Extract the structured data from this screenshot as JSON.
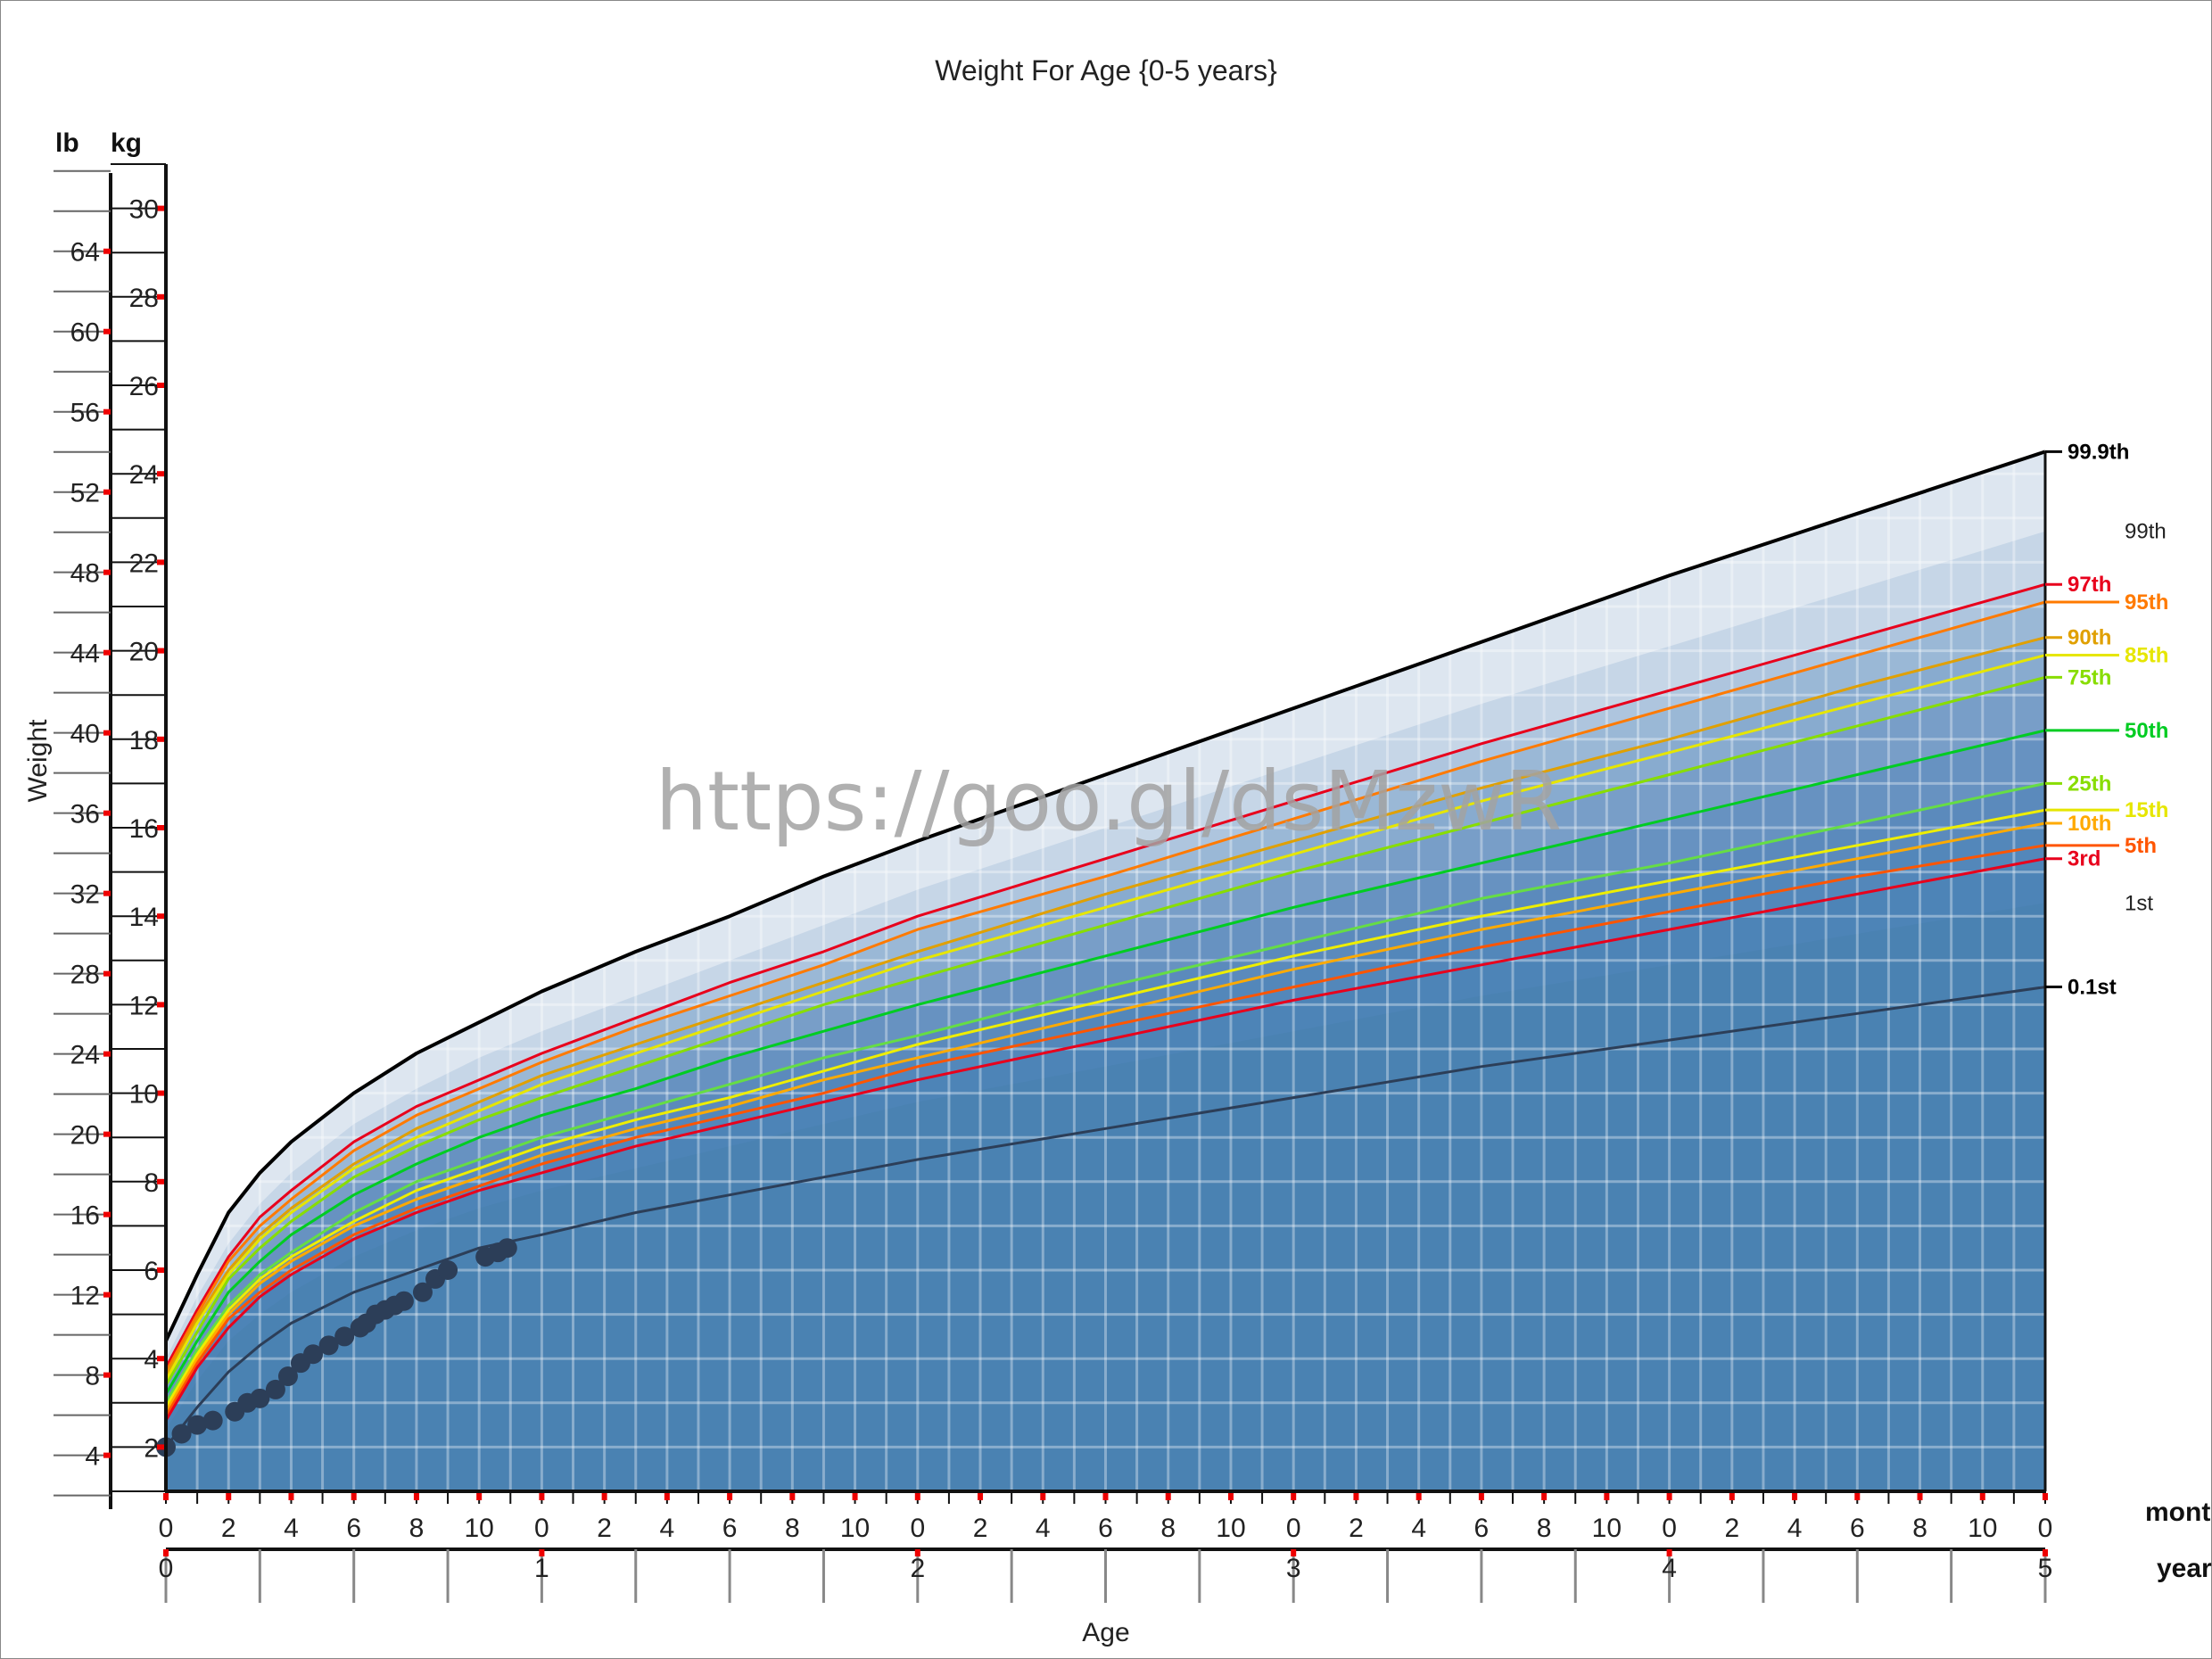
{
  "chart_data": {
    "type": "line",
    "title": "Weight For Age {0-5 years}",
    "xlabel": "Age",
    "ylabel": "Weight",
    "y_units": [
      "lb",
      "kg"
    ],
    "x_units": [
      "month",
      "year"
    ],
    "xlim_months": [
      0,
      60
    ],
    "ylim_kg": [
      1.0,
      31.0
    ],
    "kg_ticks": [
      2,
      4,
      6,
      8,
      10,
      12,
      14,
      16,
      18,
      20,
      22,
      24,
      26,
      28,
      30
    ],
    "lb_ticks": [
      4,
      8,
      12,
      16,
      20,
      24,
      28,
      32,
      36,
      40,
      44,
      48,
      52,
      56,
      60,
      64
    ],
    "month_tick_labels": [
      "0",
      "2",
      "4",
      "6",
      "8",
      "10",
      "0",
      "2",
      "4",
      "6",
      "8",
      "10",
      "0",
      "2",
      "4",
      "6",
      "8",
      "10",
      "0",
      "2",
      "4",
      "6",
      "8",
      "10",
      "0",
      "2",
      "4",
      "6",
      "8",
      "10",
      "0"
    ],
    "year_tick_labels": [
      "0",
      "1",
      "2",
      "3",
      "4",
      "5"
    ],
    "age_months": [
      0,
      1,
      2,
      3,
      4,
      6,
      8,
      10,
      12,
      15,
      18,
      21,
      24,
      30,
      36,
      42,
      48,
      54,
      60
    ],
    "series": [
      {
        "name": "99.9th",
        "color": "#000000",
        "values": [
          4.4,
          5.9,
          7.3,
          8.2,
          8.9,
          10.0,
          10.9,
          11.6,
          12.3,
          13.2,
          14.0,
          14.9,
          15.7,
          17.2,
          18.7,
          20.2,
          21.7,
          23.1,
          24.5
        ]
      },
      {
        "name": "99th",
        "color": "#dce6f0",
        "band_only": true,
        "values": [
          4.0,
          5.4,
          6.6,
          7.5,
          8.2,
          9.3,
          10.1,
          10.8,
          11.4,
          12.2,
          13.0,
          13.8,
          14.6,
          16.0,
          17.4,
          18.8,
          20.1,
          21.4,
          22.7
        ]
      },
      {
        "name": "97th",
        "color": "#e8001c",
        "values": [
          3.8,
          5.1,
          6.3,
          7.2,
          7.8,
          8.9,
          9.7,
          10.3,
          10.9,
          11.7,
          12.5,
          13.2,
          14.0,
          15.3,
          16.6,
          17.9,
          19.1,
          20.3,
          21.5
        ]
      },
      {
        "name": "95th",
        "color": "#ff7a00",
        "values": [
          3.7,
          5.0,
          6.2,
          7.0,
          7.6,
          8.7,
          9.5,
          10.1,
          10.7,
          11.5,
          12.2,
          12.9,
          13.7,
          14.9,
          16.2,
          17.5,
          18.7,
          19.9,
          21.1
        ]
      },
      {
        "name": "90th",
        "color": "#e0a000",
        "values": [
          3.6,
          4.9,
          6.0,
          6.8,
          7.4,
          8.4,
          9.2,
          9.8,
          10.4,
          11.1,
          11.8,
          12.5,
          13.2,
          14.5,
          15.7,
          16.9,
          18.0,
          19.2,
          20.3
        ]
      },
      {
        "name": "85th",
        "color": "#e6e600",
        "values": [
          3.5,
          4.8,
          5.9,
          6.7,
          7.3,
          8.3,
          9.0,
          9.6,
          10.2,
          10.9,
          11.6,
          12.3,
          13.0,
          14.2,
          15.4,
          16.6,
          17.7,
          18.8,
          19.9
        ]
      },
      {
        "name": "75th",
        "color": "#88dd00",
        "values": [
          3.4,
          4.6,
          5.8,
          6.5,
          7.1,
          8.1,
          8.8,
          9.4,
          9.9,
          10.6,
          11.3,
          12.0,
          12.6,
          13.8,
          15.0,
          16.1,
          17.2,
          18.3,
          19.4
        ]
      },
      {
        "name": "50th",
        "color": "#00cc22",
        "values": [
          3.2,
          4.4,
          5.5,
          6.2,
          6.8,
          7.7,
          8.4,
          9.0,
          9.5,
          10.1,
          10.8,
          11.4,
          12.0,
          13.1,
          14.2,
          15.2,
          16.2,
          17.2,
          18.2
        ]
      },
      {
        "name": "25th",
        "color": "#66dd44",
        "values": [
          3.0,
          4.2,
          5.2,
          5.9,
          6.4,
          7.3,
          8.0,
          8.5,
          9.0,
          9.6,
          10.2,
          10.8,
          11.3,
          12.4,
          13.4,
          14.4,
          15.2,
          16.1,
          17.0
        ]
      },
      {
        "name": "15th",
        "color": "#eeee00",
        "values": [
          2.9,
          4.1,
          5.1,
          5.8,
          6.3,
          7.1,
          7.8,
          8.3,
          8.8,
          9.4,
          9.9,
          10.5,
          11.1,
          12.1,
          13.1,
          14.0,
          14.8,
          15.6,
          16.4
        ]
      },
      {
        "name": "10th",
        "color": "#ffaa00",
        "values": [
          2.8,
          4.0,
          5.0,
          5.7,
          6.2,
          7.0,
          7.6,
          8.1,
          8.6,
          9.2,
          9.7,
          10.3,
          10.8,
          11.8,
          12.8,
          13.7,
          14.5,
          15.3,
          16.1
        ]
      },
      {
        "name": "5th",
        "color": "#ff5500",
        "values": [
          2.7,
          3.9,
          4.9,
          5.5,
          6.0,
          6.8,
          7.4,
          7.9,
          8.4,
          9.0,
          9.5,
          10.0,
          10.6,
          11.5,
          12.4,
          13.3,
          14.1,
          14.9,
          15.6
        ]
      },
      {
        "name": "3rd",
        "color": "#e8001c",
        "values": [
          2.6,
          3.8,
          4.7,
          5.4,
          5.9,
          6.7,
          7.3,
          7.8,
          8.2,
          8.8,
          9.3,
          9.8,
          10.3,
          11.2,
          12.1,
          12.9,
          13.7,
          14.5,
          15.3
        ]
      },
      {
        "name": "1st",
        "color": "#4a82b2",
        "band_only": true,
        "values": [
          2.4,
          3.5,
          4.4,
          5.0,
          5.5,
          6.3,
          6.9,
          7.4,
          7.8,
          8.3,
          8.8,
          9.3,
          9.8,
          10.6,
          11.4,
          12.2,
          12.9,
          13.6,
          14.3
        ]
      },
      {
        "name": "0.1st",
        "color": "#000000",
        "values": [
          2.0,
          2.9,
          3.7,
          4.3,
          4.8,
          5.5,
          6.0,
          6.5,
          6.8,
          7.3,
          7.7,
          8.1,
          8.5,
          9.2,
          9.9,
          10.6,
          11.2,
          11.8,
          12.4
        ]
      }
    ],
    "measurements": {
      "age_months": [
        0,
        0.5,
        1.0,
        1.5,
        2.2,
        2.6,
        3.0,
        3.5,
        3.9,
        4.3,
        4.7,
        5.2,
        5.7,
        6.2,
        6.4,
        6.7,
        7.0,
        7.3,
        7.6,
        8.2,
        8.6,
        9.0,
        10.2,
        10.6,
        10.9
      ],
      "weight_kg": [
        2.0,
        2.3,
        2.5,
        2.6,
        2.8,
        3.0,
        3.1,
        3.3,
        3.6,
        3.9,
        4.1,
        4.3,
        4.5,
        4.7,
        4.8,
        5.0,
        5.1,
        5.2,
        5.3,
        5.5,
        5.8,
        6.0,
        6.3,
        6.4,
        6.5
      ]
    },
    "grid": true,
    "legend": "right-edge labels"
  },
  "watermark": "https://goo.gl/dsMzwR",
  "colors": {
    "background_band": "#4a82b2",
    "measurement_dots": "#2c3e58"
  }
}
